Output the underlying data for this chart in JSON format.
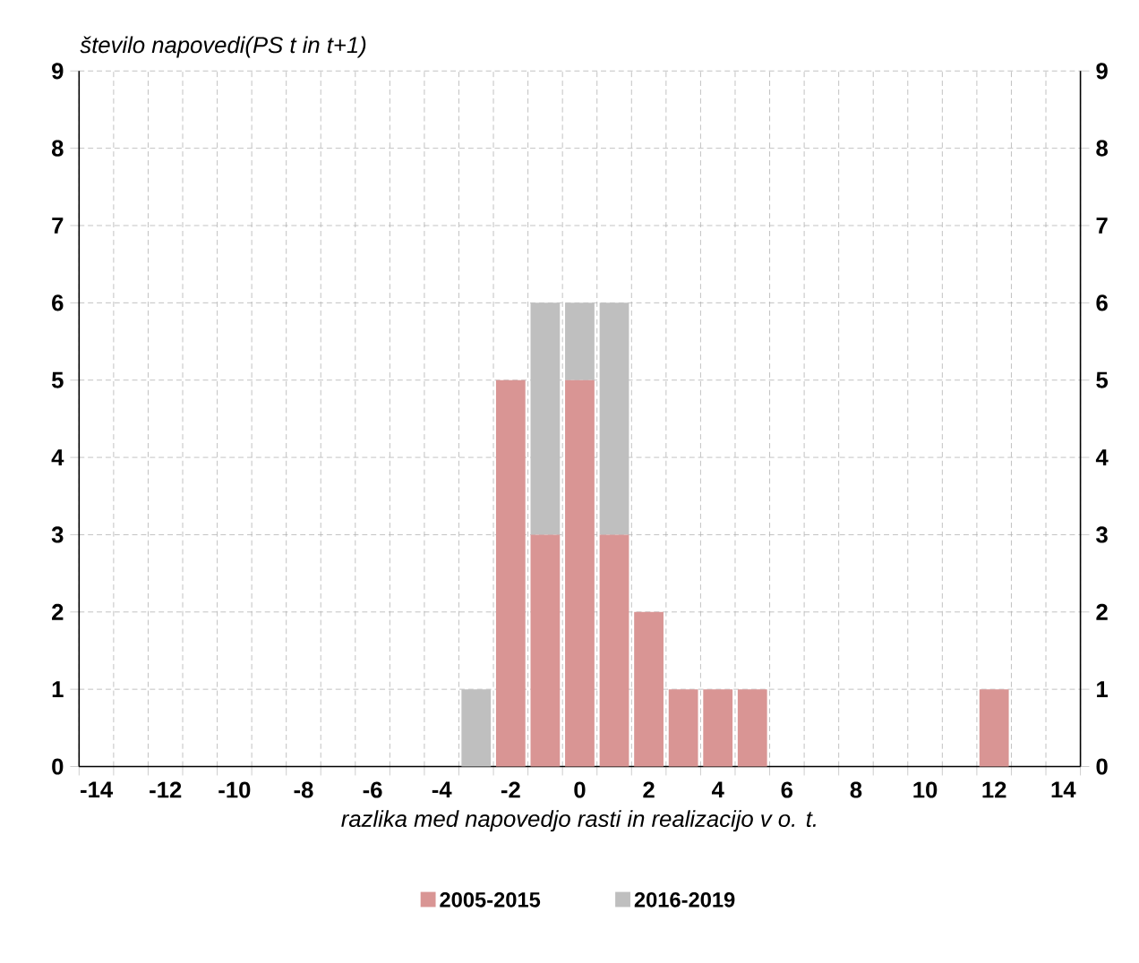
{
  "chart_data": {
    "type": "bar",
    "stacked": true,
    "title": "število napovedi(PS t in t+1)",
    "xlabel": "razlika med napovedjo rasti in realizacijo v o. t.",
    "categories": [
      "-14",
      null,
      "-12",
      null,
      "-10",
      null,
      "-8",
      null,
      "-6",
      null,
      "-4",
      null,
      "-2",
      null,
      "0",
      null,
      "2",
      null,
      "4",
      null,
      "6",
      null,
      "8",
      null,
      "10",
      null,
      "12",
      null,
      "14"
    ],
    "series": [
      {
        "name": "2005-2015",
        "color": "#d99594",
        "values": [
          0,
          0,
          0,
          0,
          0,
          0,
          0,
          0,
          0,
          0,
          0,
          0,
          5,
          3,
          5,
          3,
          2,
          1,
          1,
          1,
          0,
          0,
          0,
          0,
          0,
          0,
          1,
          0,
          0
        ]
      },
      {
        "name": "2016-2019",
        "color": "#bfbfbf",
        "values": [
          0,
          0,
          0,
          0,
          0,
          0,
          0,
          0,
          0,
          0,
          0,
          1,
          0,
          3,
          1,
          3,
          0,
          0,
          0,
          0,
          0,
          0,
          0,
          0,
          0,
          0,
          0,
          0,
          0
        ]
      }
    ],
    "ylim": [
      0,
      9
    ],
    "yticks": [
      0,
      1,
      2,
      3,
      4,
      5,
      6,
      7,
      8,
      9
    ],
    "y2lim": [
      0,
      9
    ],
    "y2ticks": [
      0,
      1,
      2,
      3,
      4,
      5,
      6,
      7,
      8,
      9
    ],
    "grid": true,
    "legend": "bottom"
  }
}
